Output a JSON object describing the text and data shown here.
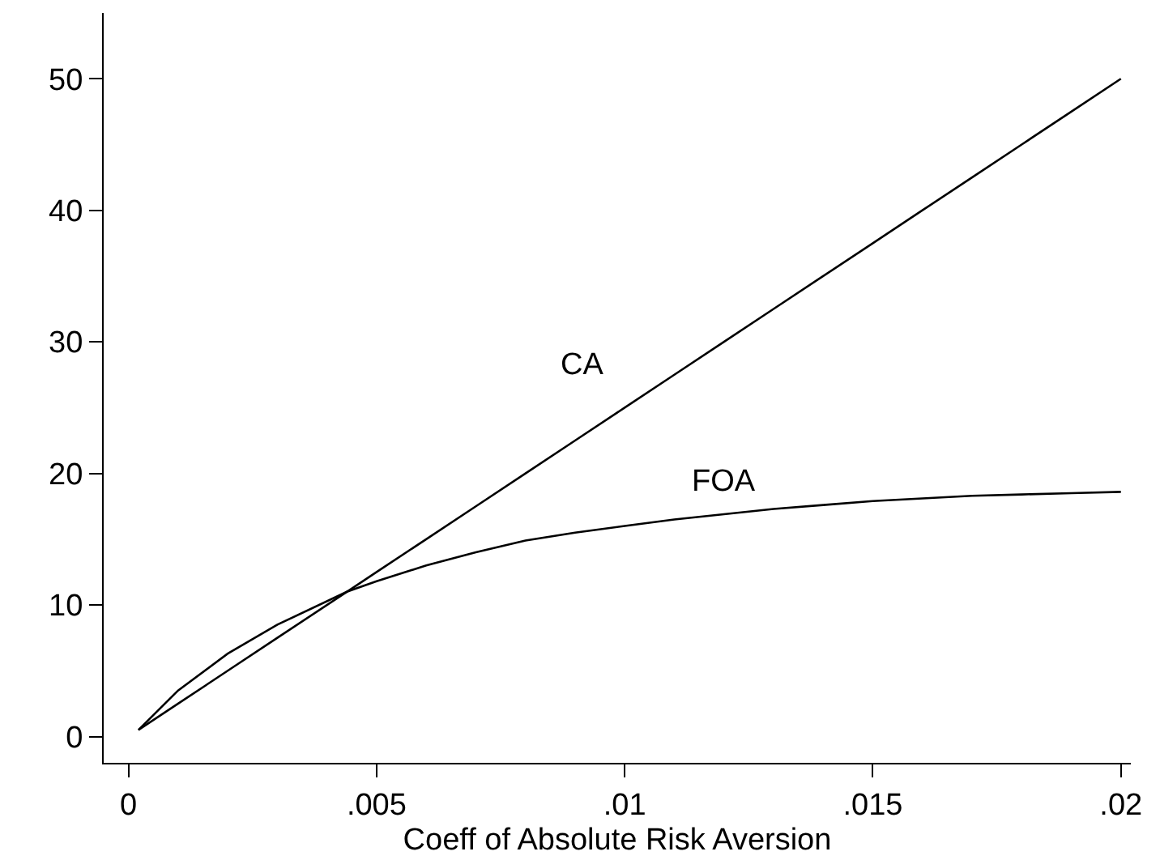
{
  "chart_data": {
    "type": "line",
    "xlabel": "Coeff of Absolute Risk Aversion",
    "x": [
      0.0002,
      0.001,
      0.002,
      0.003,
      0.0044,
      0.005,
      0.006,
      0.007,
      0.008,
      0.009,
      0.01,
      0.011,
      0.012,
      0.013,
      0.014,
      0.015,
      0.016,
      0.017,
      0.018,
      0.019,
      0.02
    ],
    "series": [
      {
        "name": "CA",
        "color": "#000000",
        "values": [
          0.5,
          2.5,
          5,
          7.5,
          11,
          12.5,
          15,
          17.5,
          20,
          22.5,
          25,
          27.5,
          30,
          32.5,
          35,
          37.5,
          40,
          42.5,
          45,
          47.5,
          50
        ]
      },
      {
        "name": "FOA",
        "color": "#000000",
        "values": [
          0.5,
          3.5,
          6.3,
          8.5,
          11,
          11.8,
          13,
          14,
          14.9,
          15.5,
          16,
          16.5,
          16.9,
          17.3,
          17.6,
          17.9,
          18.1,
          18.3,
          18.4,
          18.5,
          18.6
        ]
      }
    ],
    "xlim": [
      -0.0005,
      0.0202
    ],
    "ylim": [
      -2,
      55
    ],
    "xticks": [
      {
        "value": 0,
        "label": "0"
      },
      {
        "value": 0.005,
        "label": ".005"
      },
      {
        "value": 0.01,
        "label": ".01"
      },
      {
        "value": 0.015,
        "label": ".015"
      },
      {
        "value": 0.02,
        "label": ".02"
      }
    ],
    "yticks": [
      0,
      10,
      20,
      30,
      40,
      50
    ],
    "grid": false,
    "legend": false,
    "marker": "none",
    "line_style": "solid"
  }
}
